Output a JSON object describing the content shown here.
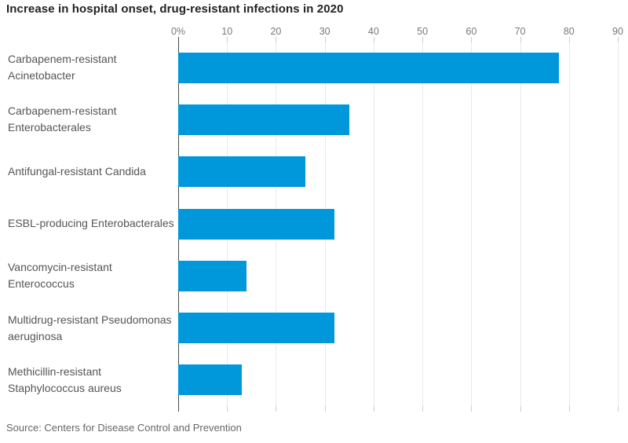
{
  "chart_data": {
    "type": "bar",
    "orientation": "horizontal",
    "title": "Increase in hospital onset, drug-resistant infections in 2020",
    "categories": [
      "Carbapenem-resistant Acinetobacter",
      "Carbapenem-resistant Enterobacterales",
      "Antifungal-resistant Candida",
      "ESBL-producing Enterobacterales",
      "Vancomycin-resistant Enterococcus",
      "Multidrug-resistant Pseudomonas aeruginosa",
      "Methicillin-resistant Staphylococcus aureus"
    ],
    "values": [
      78,
      35,
      26,
      32,
      14,
      32,
      13
    ],
    "unit": "percent",
    "xlabel": "",
    "ylabel": "",
    "xlim": [
      0,
      90
    ],
    "tick_values": [
      0,
      10,
      20,
      30,
      40,
      50,
      60,
      70,
      80,
      90
    ],
    "tick_labels": [
      "0%",
      "10",
      "20",
      "30",
      "40",
      "50",
      "60",
      "70",
      "80",
      "90"
    ],
    "grid": true,
    "legend_position": "none",
    "source": "Source: Centers for Disease Control and Prevention",
    "colors": {
      "bar": "#0098DB",
      "grid_line": "#e9e9e9",
      "zero_line": "#4a4a4a",
      "tick_mark": "#cccccc",
      "zero_tick": "#4a4a4a",
      "title_text": "#222222",
      "label_text": "#555555",
      "tick_text": "#787878",
      "source_text": "#666666"
    }
  }
}
